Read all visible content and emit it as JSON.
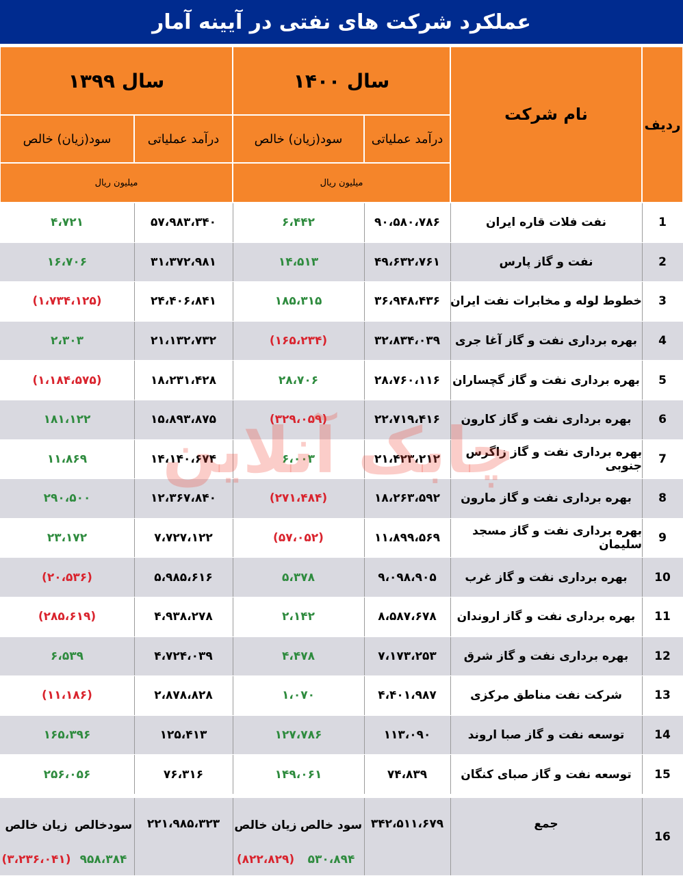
{
  "title": "عملکرد شرکت های نفتی در آیینه آمار",
  "header": {
    "row_col": "ردیف",
    "name_col": "نام شرکت",
    "year_1400": "سال ۱۴۰۰",
    "year_1399": "سال ۱۳۹۹",
    "revenue": "درآمد عملیاتی",
    "profit": "سود(زیان) خالص",
    "unit": "میلیون ریال"
  },
  "watermark": "چابک آنلاین",
  "rows": [
    {
      "n": "1",
      "name": "نفت فلات قاره ایران",
      "rev1400": "۹۰،۵۸۰،۷۸۶",
      "pl1400": "۶،۴۴۲",
      "pl1400_type": "pos",
      "rev1399": "۵۷،۹۸۳،۳۴۰",
      "pl1399": "۴،۷۲۱",
      "pl1399_type": "pos"
    },
    {
      "n": "2",
      "name": "نفت و گاز پارس",
      "rev1400": "۴۹،۶۳۲،۷۶۱",
      "pl1400": "۱۴،۵۱۳",
      "pl1400_type": "pos",
      "rev1399": "۳۱،۳۷۲،۹۸۱",
      "pl1399": "۱۶،۷۰۶",
      "pl1399_type": "pos"
    },
    {
      "n": "3",
      "name": "خطوط لوله و مخابرات نفت ایران",
      "rev1400": "۳۶،۹۴۸،۴۳۶",
      "pl1400": "۱۸۵،۳۱۵",
      "pl1400_type": "pos",
      "rev1399": "۲۴،۴۰۶،۸۴۱",
      "pl1399": "(۱،۷۳۴،۱۲۵)",
      "pl1399_type": "neg"
    },
    {
      "n": "4",
      "name": "بهره برداری نفت و گاز آغا جری",
      "rev1400": "۳۲،۸۳۴،۰۳۹",
      "pl1400": "(۱۶۵،۲۳۴)",
      "pl1400_type": "neg",
      "rev1399": "۲۱،۱۳۲،۷۳۲",
      "pl1399": "۲،۳۰۳",
      "pl1399_type": "pos"
    },
    {
      "n": "5",
      "name": "بهره برداری نفت و گاز گچساران",
      "rev1400": "۲۸،۷۶۰،۱۱۶",
      "pl1400": "۲۸،۷۰۶",
      "pl1400_type": "pos",
      "rev1399": "۱۸،۲۳۱،۴۲۸",
      "pl1399": "(۱،۱۸۴،۵۷۵)",
      "pl1399_type": "neg"
    },
    {
      "n": "6",
      "name": "بهره برداری نفت و گاز کارون",
      "rev1400": "۲۲،۷۱۹،۴۱۶",
      "pl1400": "(۳۲۹،۰۵۹)",
      "pl1400_type": "neg",
      "rev1399": "۱۵،۸۹۳،۸۷۵",
      "pl1399": "۱۸۱،۱۲۲",
      "pl1399_type": "pos"
    },
    {
      "n": "7",
      "name": "بهره برداری نفت و گاز زاگرس جنوبی",
      "rev1400": "۲۱،۴۲۳،۲۱۲",
      "pl1400": "۶،۰۰۳",
      "pl1400_type": "pos",
      "rev1399": "۱۴،۱۴۰،۶۷۴",
      "pl1399": "۱۱،۸۶۹",
      "pl1399_type": "pos"
    },
    {
      "n": "8",
      "name": "بهره برداری نفت و گاز مارون",
      "rev1400": "۱۸،۲۶۳،۵۹۲",
      "pl1400": "(۲۷۱،۴۸۴)",
      "pl1400_type": "neg",
      "rev1399": "۱۲،۳۶۷،۸۴۰",
      "pl1399": "۲۹۰،۵۰۰",
      "pl1399_type": "pos"
    },
    {
      "n": "9",
      "name": "بهره برداری نفت و گاز مسجد سلیمان",
      "rev1400": "۱۱،۸۹۹،۵۶۹",
      "pl1400": "(۵۷،۰۵۲)",
      "pl1400_type": "neg",
      "rev1399": "۷،۷۲۷،۱۲۲",
      "pl1399": "۲۳،۱۷۲",
      "pl1399_type": "pos"
    },
    {
      "n": "10",
      "name": "بهره برداری نفت و گاز غرب",
      "rev1400": "۹،۰۹۸،۹۰۵",
      "pl1400": "۵،۳۷۸",
      "pl1400_type": "pos",
      "rev1399": "۵،۹۸۵،۶۱۶",
      "pl1399": "(۲۰،۵۳۶)",
      "pl1399_type": "neg"
    },
    {
      "n": "11",
      "name": "بهره برداری نفت و گاز اروندان",
      "rev1400": "۸،۵۸۷،۶۷۸",
      "pl1400": "۲،۱۴۲",
      "pl1400_type": "pos",
      "rev1399": "۴،۹۳۸،۲۷۸",
      "pl1399": "(۲۸۵،۶۱۹)",
      "pl1399_type": "neg"
    },
    {
      "n": "12",
      "name": "بهره برداری نفت و گاز شرق",
      "rev1400": "۷،۱۷۳،۲۵۳",
      "pl1400": "۴،۴۷۸",
      "pl1400_type": "pos",
      "rev1399": "۴،۷۲۴،۰۳۹",
      "pl1399": "۶،۵۳۹",
      "pl1399_type": "pos"
    },
    {
      "n": "13",
      "name": "شرکت نفت مناطق مرکزی",
      "rev1400": "۴،۴۰۱،۹۸۷",
      "pl1400": "۱،۰۷۰",
      "pl1400_type": "pos",
      "rev1399": "۲،۸۷۸،۸۲۸",
      "pl1399": "(۱۱،۱۸۶)",
      "pl1399_type": "neg"
    },
    {
      "n": "14",
      "name": "توسعه نفت و گاز صبا اروند",
      "rev1400": "۱۱۳،۰۹۰",
      "pl1400": "۱۲۷،۷۸۶",
      "pl1400_type": "pos",
      "rev1399": "۱۲۵،۴۱۳",
      "pl1399": "۱۶۵،۳۹۶",
      "pl1399_type": "pos"
    },
    {
      "n": "15",
      "name": "توسعه نفت و گاز صبای کنگان",
      "rev1400": "۷۴،۸۳۹",
      "pl1400": "۱۴۹،۰۶۱",
      "pl1400_type": "pos",
      "rev1399": "۷۶،۳۱۶",
      "pl1399": "۲۵۶،۰۵۶",
      "pl1399_type": "pos"
    }
  ],
  "total": {
    "n": "16",
    "name": "جمع",
    "rev1400": "۳۴۲،۵۱۱،۶۷۹",
    "rev1399": "۲۲۱،۹۸۵،۳۲۳",
    "profit_label": "سود خالص",
    "loss_label": "زیان خالص",
    "profit_label_1399": "سودخالص",
    "profit1400": "۵۳۰،۸۹۴",
    "loss1400": "(۸۲۲،۸۲۹)",
    "profit1399": "۹۵۸،۳۸۴",
    "loss1399": "(۳،۲۳۶،۰۴۱)"
  },
  "colors": {
    "header_blue": "#002b8f",
    "header_orange": "#f5852a",
    "positive": "#2e8b3e",
    "negative": "#d9232d",
    "row_shade": "#d9d9e0"
  }
}
